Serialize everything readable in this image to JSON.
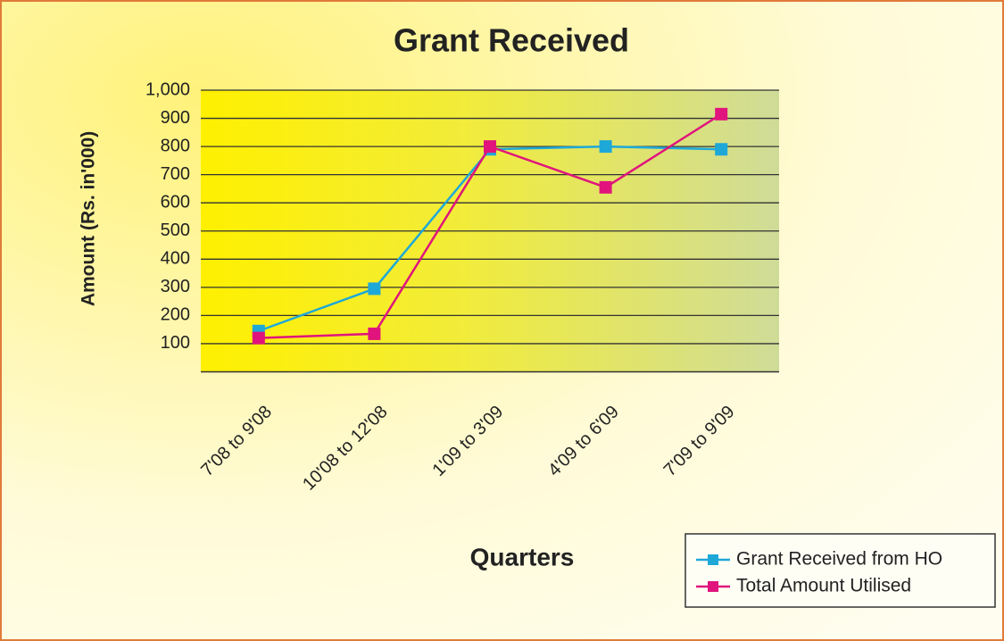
{
  "chart_data": {
    "type": "line",
    "title": "Grant Received",
    "y_label": "Amount (Rs. in'000)",
    "x_label": "Quarters",
    "categories": [
      "7'08 to 9'08",
      "10'08 to 12'08",
      "1'09 to 3'09",
      "4'09 to 6'09",
      "7'09 to 9'09"
    ],
    "series": [
      {
        "name": "Grant Received from HO",
        "color": "#1ea8d8",
        "values": [
          145,
          295,
          790,
          800,
          790
        ]
      },
      {
        "name": "Total Amount Utilised",
        "color": "#e0147c",
        "values": [
          120,
          135,
          800,
          655,
          915
        ]
      }
    ],
    "ylim": [
      0,
      1000
    ],
    "yticks": [
      100,
      200,
      300,
      400,
      500,
      600,
      700,
      800,
      900,
      {
        "value": 1000,
        "label": "1,000"
      }
    ],
    "grid": true,
    "legend": "bottom-right"
  }
}
